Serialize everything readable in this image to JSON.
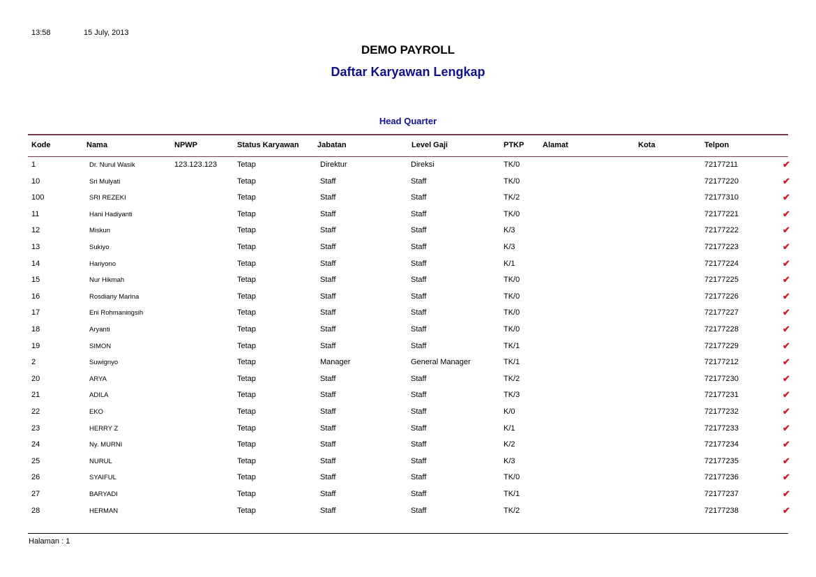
{
  "header": {
    "time": "13:58",
    "date": "15 July, 2013",
    "title": "DEMO PAYROLL",
    "subtitle": "Daftar Karyawan Lengkap",
    "group": "Head Quarter"
  },
  "columns": [
    "Kode",
    "Nama",
    "NPWP",
    "Status Karyawan",
    "Jabatan",
    "Level Gaji",
    "PTKP",
    "Alamat",
    "Kota",
    "Telpon"
  ],
  "colors": {
    "title_blue": "#10108a",
    "rule": "#7a3a4a",
    "check": "#d01a2a"
  },
  "check_icon": "checkmark-icon",
  "rows": [
    {
      "kode": "1",
      "nama": "Dr. Nurul Wasik",
      "npwp": "123.123.123",
      "status": "Tetap",
      "jabatan": "Direktur",
      "level": "Direksi",
      "ptkp": "TK/0",
      "alamat": "",
      "kota": "",
      "telpon": "72177211"
    },
    {
      "kode": "10",
      "nama": "Sri Mulyati",
      "npwp": "",
      "status": "Tetap",
      "jabatan": "Staff",
      "level": "Staff",
      "ptkp": "TK/0",
      "alamat": "",
      "kota": "",
      "telpon": "72177220"
    },
    {
      "kode": "100",
      "nama": "SRI REZEKI",
      "npwp": "",
      "status": "Tetap",
      "jabatan": "Staff",
      "level": "Staff",
      "ptkp": "TK/2",
      "alamat": "",
      "kota": "",
      "telpon": "72177310"
    },
    {
      "kode": "11",
      "nama": "Hani Hadiyanti",
      "npwp": "",
      "status": "Tetap",
      "jabatan": "Staff",
      "level": "Staff",
      "ptkp": "TK/0",
      "alamat": "",
      "kota": "",
      "telpon": "72177221"
    },
    {
      "kode": "12",
      "nama": "Miskun",
      "npwp": "",
      "status": "Tetap",
      "jabatan": "Staff",
      "level": "Staff",
      "ptkp": "K/3",
      "alamat": "",
      "kota": "",
      "telpon": "72177222"
    },
    {
      "kode": "13",
      "nama": "Sukiyo",
      "npwp": "",
      "status": "Tetap",
      "jabatan": "Staff",
      "level": "Staff",
      "ptkp": "K/3",
      "alamat": "",
      "kota": "",
      "telpon": "72177223"
    },
    {
      "kode": "14",
      "nama": "Hariyono",
      "npwp": "",
      "status": "Tetap",
      "jabatan": "Staff",
      "level": "Staff",
      "ptkp": "K/1",
      "alamat": "",
      "kota": "",
      "telpon": "72177224"
    },
    {
      "kode": "15",
      "nama": "Nur Hikmah",
      "npwp": "",
      "status": "Tetap",
      "jabatan": "Staff",
      "level": "Staff",
      "ptkp": "TK/0",
      "alamat": "",
      "kota": "",
      "telpon": "72177225"
    },
    {
      "kode": "16",
      "nama": "Rosdiany Marina",
      "npwp": "",
      "status": "Tetap",
      "jabatan": "Staff",
      "level": "Staff",
      "ptkp": "TK/0",
      "alamat": "",
      "kota": "",
      "telpon": "72177226"
    },
    {
      "kode": "17",
      "nama": "Eni Rohmaningsih",
      "npwp": "",
      "status": "Tetap",
      "jabatan": "Staff",
      "level": "Staff",
      "ptkp": "TK/0",
      "alamat": "",
      "kota": "",
      "telpon": "72177227"
    },
    {
      "kode": "18",
      "nama": "Aryanti",
      "npwp": "",
      "status": "Tetap",
      "jabatan": "Staff",
      "level": "Staff",
      "ptkp": "TK/0",
      "alamat": "",
      "kota": "",
      "telpon": "72177228"
    },
    {
      "kode": "19",
      "nama": "SIMON",
      "npwp": "",
      "status": "Tetap",
      "jabatan": "Staff",
      "level": "Staff",
      "ptkp": "TK/1",
      "alamat": "",
      "kota": "",
      "telpon": "72177229"
    },
    {
      "kode": "2",
      "nama": "Suwignyo",
      "npwp": "",
      "status": "Tetap",
      "jabatan": "Manager",
      "level": "General Manager",
      "ptkp": "TK/1",
      "alamat": "",
      "kota": "",
      "telpon": "72177212"
    },
    {
      "kode": "20",
      "nama": "ARYA",
      "npwp": "",
      "status": "Tetap",
      "jabatan": "Staff",
      "level": "Staff",
      "ptkp": "TK/2",
      "alamat": "",
      "kota": "",
      "telpon": "72177230"
    },
    {
      "kode": "21",
      "nama": "ADILA",
      "npwp": "",
      "status": "Tetap",
      "jabatan": "Staff",
      "level": "Staff",
      "ptkp": "TK/3",
      "alamat": "",
      "kota": "",
      "telpon": "72177231"
    },
    {
      "kode": "22",
      "nama": "EKO",
      "npwp": "",
      "status": "Tetap",
      "jabatan": "Staff",
      "level": "Staff",
      "ptkp": "K/0",
      "alamat": "",
      "kota": "",
      "telpon": "72177232"
    },
    {
      "kode": "23",
      "nama": "HERRY Z",
      "npwp": "",
      "status": "Tetap",
      "jabatan": "Staff",
      "level": "Staff",
      "ptkp": "K/1",
      "alamat": "",
      "kota": "",
      "telpon": "72177233"
    },
    {
      "kode": "24",
      "nama": "Ny. MURNI",
      "npwp": "",
      "status": "Tetap",
      "jabatan": "Staff",
      "level": "Staff",
      "ptkp": "K/2",
      "alamat": "",
      "kota": "",
      "telpon": "72177234"
    },
    {
      "kode": "25",
      "nama": "NURUL",
      "npwp": "",
      "status": "Tetap",
      "jabatan": "Staff",
      "level": "Staff",
      "ptkp": "K/3",
      "alamat": "",
      "kota": "",
      "telpon": "72177235"
    },
    {
      "kode": "26",
      "nama": "SYAIFUL",
      "npwp": "",
      "status": "Tetap",
      "jabatan": "Staff",
      "level": "Staff",
      "ptkp": "TK/0",
      "alamat": "",
      "kota": "",
      "telpon": "72177236"
    },
    {
      "kode": "27",
      "nama": "BARYADI",
      "npwp": "",
      "status": "Tetap",
      "jabatan": "Staff",
      "level": "Staff",
      "ptkp": "TK/1",
      "alamat": "",
      "kota": "",
      "telpon": "72177237"
    },
    {
      "kode": "28",
      "nama": "HERMAN",
      "npwp": "",
      "status": "Tetap",
      "jabatan": "Staff",
      "level": "Staff",
      "ptkp": "TK/2",
      "alamat": "",
      "kota": "",
      "telpon": "72177238"
    }
  ],
  "footer": {
    "page": "Halaman : 1"
  }
}
